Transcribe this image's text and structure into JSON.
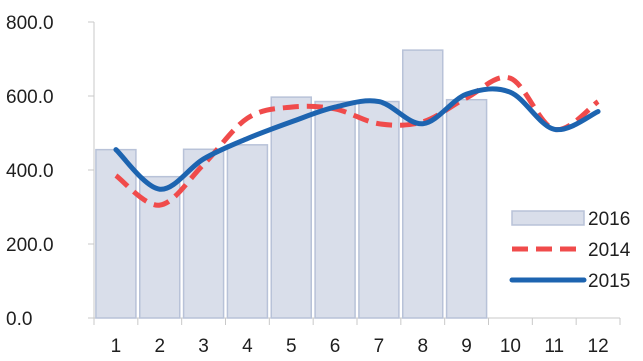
{
  "chart_data": {
    "type": "bar",
    "categories": [
      "1",
      "2",
      "3",
      "4",
      "5",
      "6",
      "7",
      "8",
      "9",
      "10",
      "11",
      "12"
    ],
    "y_tick_labels": [
      "0.0",
      "200.0",
      "400.0",
      "600.0",
      "800.0"
    ],
    "ylim": [
      0,
      800
    ],
    "grid": false,
    "legend_position": "right",
    "series": [
      {
        "name": "2016",
        "type": "bar",
        "color": "#d9deea",
        "edge_color": "#b8c2d8",
        "values": [
          455,
          382,
          456,
          468,
          597,
          585,
          585,
          724,
          590,
          null,
          null,
          null
        ]
      },
      {
        "name": "2014",
        "type": "line",
        "style": "dashed",
        "color": "#f04b4b",
        "values": [
          385,
          305,
          415,
          540,
          570,
          565,
          525,
          530,
          595,
          648,
          510,
          585
        ]
      },
      {
        "name": "2015",
        "type": "line",
        "style": "solid",
        "color": "#1d64b0",
        "values": [
          455,
          348,
          430,
          485,
          530,
          570,
          585,
          525,
          605,
          610,
          510,
          558
        ]
      }
    ]
  }
}
